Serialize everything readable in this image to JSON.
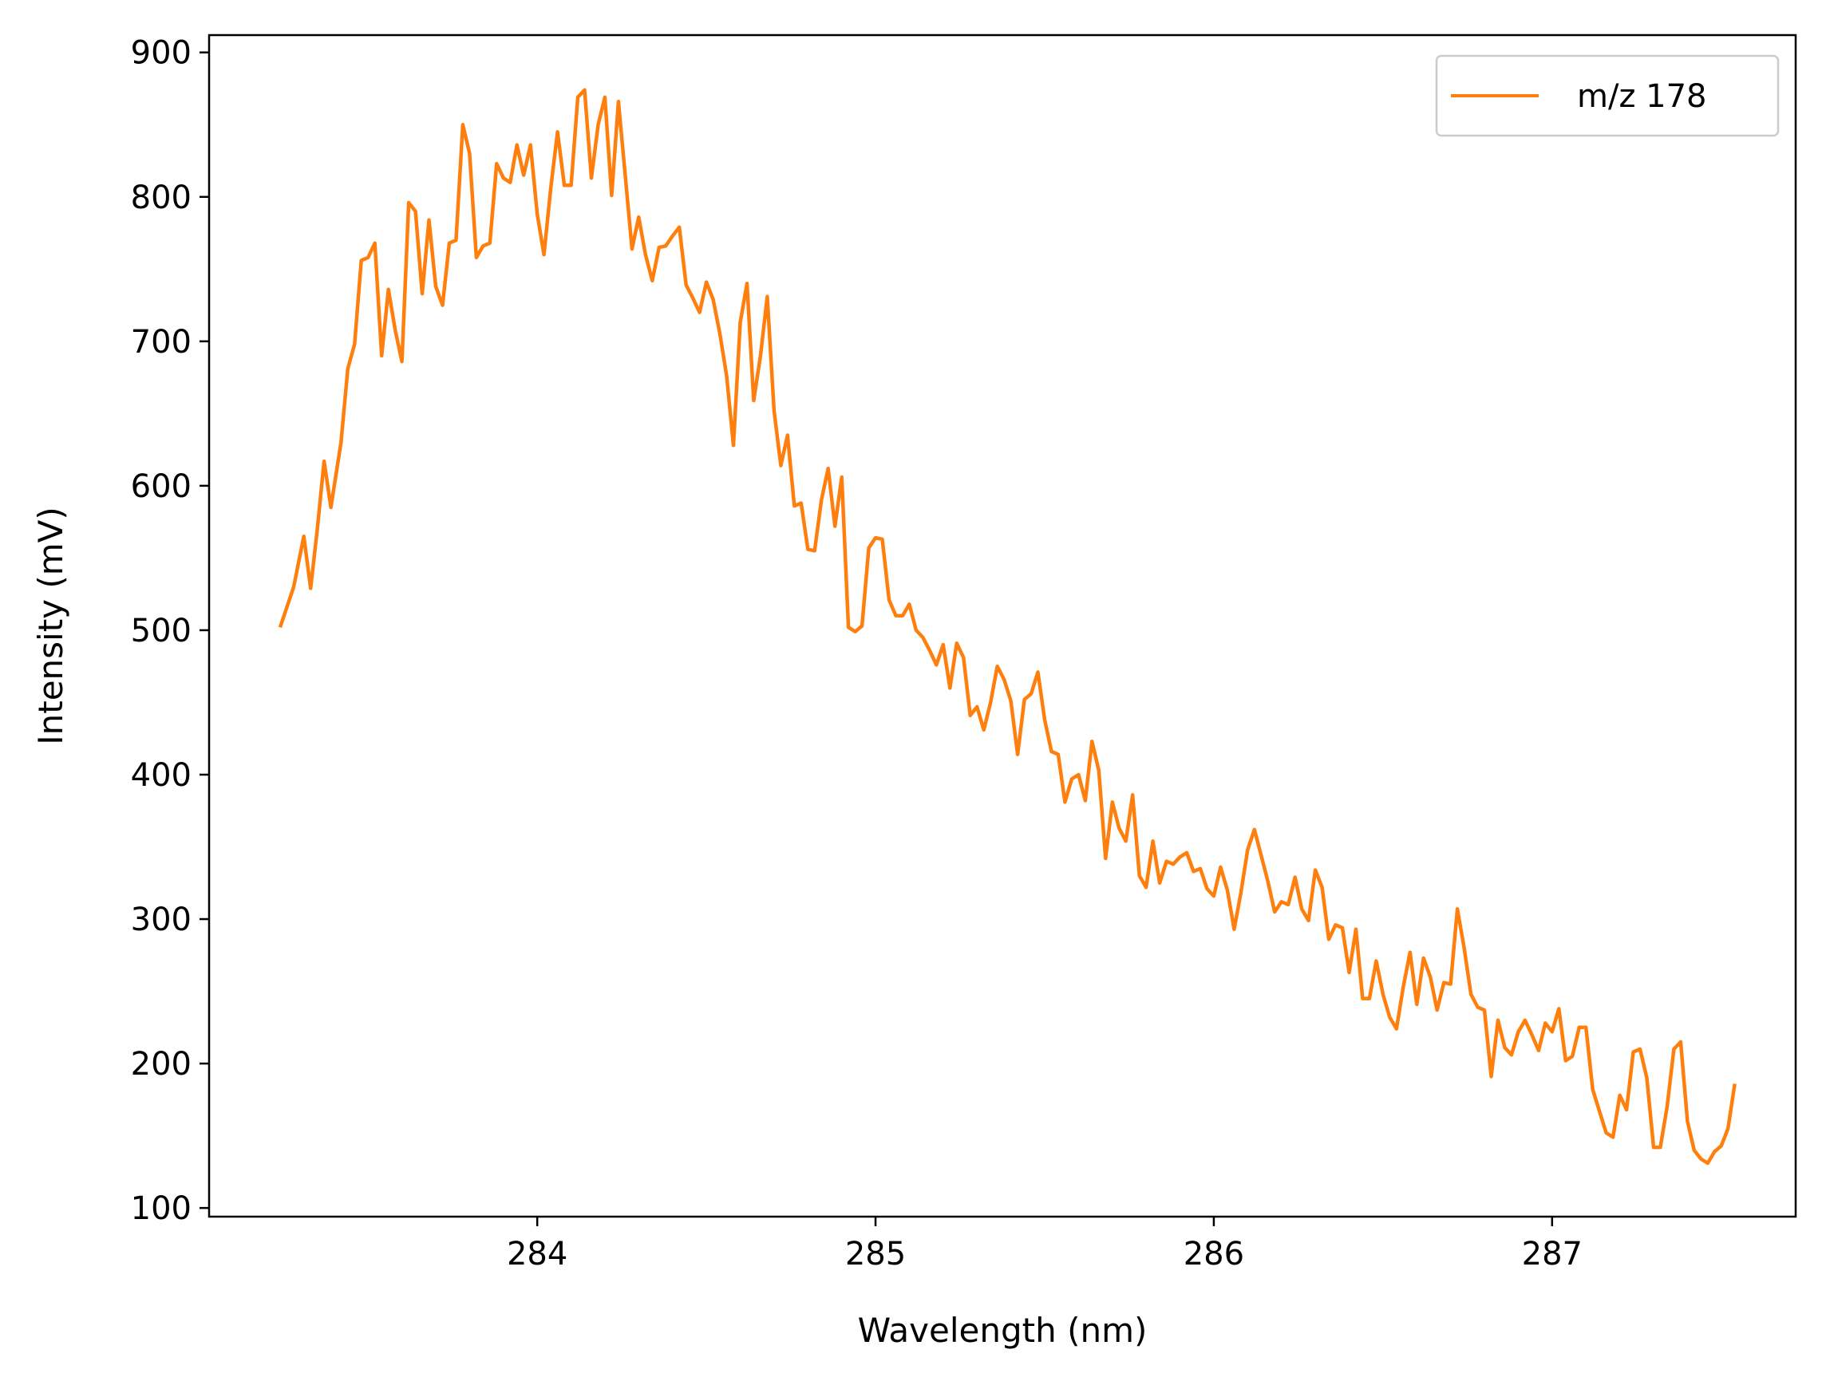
{
  "chart_data": {
    "type": "line",
    "title": "",
    "xlabel": "Wavelength (nm)",
    "ylabel": "Intensity (mV)",
    "xlim": [
      283.03,
      287.72
    ],
    "ylim": [
      94,
      912
    ],
    "xticks": [
      284,
      285,
      286,
      287
    ],
    "yticks": [
      100,
      200,
      300,
      400,
      500,
      600,
      700,
      800,
      900
    ],
    "grid": false,
    "legend_position": "top-right",
    "series": [
      {
        "name": "m/z 178",
        "color": "#ff7f0e",
        "points": [
          [
            283.24,
            502
          ],
          [
            283.28,
            530
          ],
          [
            283.31,
            565
          ],
          [
            283.33,
            529
          ],
          [
            283.35,
            570
          ],
          [
            283.37,
            617
          ],
          [
            283.39,
            585
          ],
          [
            283.42,
            630
          ],
          [
            283.44,
            681
          ],
          [
            283.46,
            698
          ],
          [
            283.48,
            756
          ],
          [
            283.5,
            758
          ],
          [
            283.52,
            768
          ],
          [
            283.54,
            690
          ],
          [
            283.56,
            736
          ],
          [
            283.58,
            708
          ],
          [
            283.6,
            686
          ],
          [
            283.62,
            796
          ],
          [
            283.64,
            790
          ],
          [
            283.66,
            733
          ],
          [
            283.68,
            784
          ],
          [
            283.7,
            738
          ],
          [
            283.72,
            725
          ],
          [
            283.74,
            768
          ],
          [
            283.76,
            770
          ],
          [
            283.78,
            850
          ],
          [
            283.8,
            830
          ],
          [
            283.82,
            758
          ],
          [
            283.84,
            766
          ],
          [
            283.86,
            768
          ],
          [
            283.88,
            823
          ],
          [
            283.9,
            813
          ],
          [
            283.92,
            810
          ],
          [
            283.94,
            836
          ],
          [
            283.96,
            815
          ],
          [
            283.98,
            836
          ],
          [
            284.0,
            788
          ],
          [
            284.02,
            760
          ],
          [
            284.04,
            806
          ],
          [
            284.06,
            845
          ],
          [
            284.08,
            808
          ],
          [
            284.1,
            808
          ],
          [
            284.12,
            869
          ],
          [
            284.14,
            874
          ],
          [
            284.16,
            813
          ],
          [
            284.18,
            850
          ],
          [
            284.2,
            869
          ],
          [
            284.22,
            801
          ],
          [
            284.24,
            866
          ],
          [
            284.26,
            815
          ],
          [
            284.28,
            764
          ],
          [
            284.3,
            786
          ],
          [
            284.32,
            760
          ],
          [
            284.34,
            742
          ],
          [
            284.36,
            765
          ],
          [
            284.38,
            766
          ],
          [
            284.4,
            773
          ],
          [
            284.42,
            779
          ],
          [
            284.44,
            739
          ],
          [
            284.46,
            730
          ],
          [
            284.48,
            720
          ],
          [
            284.5,
            741
          ],
          [
            284.52,
            729
          ],
          [
            284.54,
            705
          ],
          [
            284.56,
            676
          ],
          [
            284.58,
            628
          ],
          [
            284.6,
            713
          ],
          [
            284.62,
            740
          ],
          [
            284.64,
            659
          ],
          [
            284.66,
            690
          ],
          [
            284.68,
            731
          ],
          [
            284.7,
            652
          ],
          [
            284.72,
            614
          ],
          [
            284.74,
            635
          ],
          [
            284.76,
            586
          ],
          [
            284.78,
            588
          ],
          [
            284.8,
            556
          ],
          [
            284.82,
            555
          ],
          [
            284.84,
            590
          ],
          [
            284.86,
            612
          ],
          [
            284.88,
            572
          ],
          [
            284.9,
            606
          ],
          [
            284.92,
            502
          ],
          [
            284.94,
            499
          ],
          [
            284.96,
            503
          ],
          [
            284.98,
            557
          ],
          [
            285.0,
            564
          ],
          [
            285.02,
            563
          ],
          [
            285.04,
            521
          ],
          [
            285.06,
            510
          ],
          [
            285.08,
            510
          ],
          [
            285.1,
            518
          ],
          [
            285.12,
            500
          ],
          [
            285.14,
            495
          ],
          [
            285.16,
            486
          ],
          [
            285.18,
            476
          ],
          [
            285.2,
            490
          ],
          [
            285.22,
            460
          ],
          [
            285.24,
            491
          ],
          [
            285.26,
            481
          ],
          [
            285.28,
            441
          ],
          [
            285.3,
            447
          ],
          [
            285.32,
            431
          ],
          [
            285.34,
            450
          ],
          [
            285.36,
            475
          ],
          [
            285.38,
            466
          ],
          [
            285.4,
            451
          ],
          [
            285.42,
            414
          ],
          [
            285.44,
            452
          ],
          [
            285.46,
            456
          ],
          [
            285.48,
            471
          ],
          [
            285.5,
            438
          ],
          [
            285.52,
            416
          ],
          [
            285.54,
            414
          ],
          [
            285.56,
            381
          ],
          [
            285.58,
            397
          ],
          [
            285.6,
            400
          ],
          [
            285.62,
            382
          ],
          [
            285.64,
            423
          ],
          [
            285.66,
            403
          ],
          [
            285.68,
            342
          ],
          [
            285.7,
            381
          ],
          [
            285.72,
            363
          ],
          [
            285.74,
            354
          ],
          [
            285.76,
            386
          ],
          [
            285.78,
            330
          ],
          [
            285.8,
            322
          ],
          [
            285.82,
            354
          ],
          [
            285.84,
            325
          ],
          [
            285.86,
            340
          ],
          [
            285.88,
            338
          ],
          [
            285.9,
            343
          ],
          [
            285.92,
            346
          ],
          [
            285.94,
            333
          ],
          [
            285.96,
            335
          ],
          [
            285.98,
            321
          ],
          [
            286.0,
            316
          ],
          [
            286.02,
            336
          ],
          [
            286.04,
            320
          ],
          [
            286.06,
            293
          ],
          [
            286.08,
            318
          ],
          [
            286.1,
            348
          ],
          [
            286.12,
            362
          ],
          [
            286.14,
            344
          ],
          [
            286.16,
            326
          ],
          [
            286.18,
            305
          ],
          [
            286.2,
            312
          ],
          [
            286.22,
            310
          ],
          [
            286.24,
            329
          ],
          [
            286.26,
            307
          ],
          [
            286.28,
            299
          ],
          [
            286.3,
            334
          ],
          [
            286.32,
            322
          ],
          [
            286.34,
            286
          ],
          [
            286.36,
            296
          ],
          [
            286.38,
            294
          ],
          [
            286.4,
            263
          ],
          [
            286.42,
            293
          ],
          [
            286.44,
            245
          ],
          [
            286.46,
            245
          ],
          [
            286.48,
            271
          ],
          [
            286.5,
            248
          ],
          [
            286.52,
            232
          ],
          [
            286.54,
            224
          ],
          [
            286.56,
            253
          ],
          [
            286.58,
            277
          ],
          [
            286.6,
            241
          ],
          [
            286.62,
            273
          ],
          [
            286.64,
            260
          ],
          [
            286.66,
            237
          ],
          [
            286.68,
            256
          ],
          [
            286.7,
            255
          ],
          [
            286.72,
            307
          ],
          [
            286.74,
            280
          ],
          [
            286.76,
            248
          ],
          [
            286.78,
            239
          ],
          [
            286.8,
            237
          ],
          [
            286.82,
            191
          ],
          [
            286.84,
            230
          ],
          [
            286.86,
            211
          ],
          [
            286.88,
            206
          ],
          [
            286.9,
            222
          ],
          [
            286.92,
            230
          ],
          [
            286.94,
            220
          ],
          [
            286.96,
            209
          ],
          [
            286.98,
            228
          ],
          [
            287.0,
            222
          ],
          [
            287.02,
            238
          ],
          [
            287.04,
            202
          ],
          [
            287.06,
            205
          ],
          [
            287.08,
            225
          ],
          [
            287.1,
            225
          ],
          [
            287.12,
            182
          ],
          [
            287.14,
            167
          ],
          [
            287.16,
            152
          ],
          [
            287.18,
            149
          ],
          [
            287.2,
            178
          ],
          [
            287.22,
            168
          ],
          [
            287.24,
            208
          ],
          [
            287.26,
            210
          ],
          [
            287.28,
            190
          ],
          [
            287.3,
            142
          ],
          [
            287.32,
            142
          ],
          [
            287.34,
            170
          ],
          [
            287.36,
            210
          ],
          [
            287.38,
            215
          ],
          [
            287.4,
            160
          ],
          [
            287.42,
            140
          ],
          [
            287.44,
            134
          ],
          [
            287.46,
            131
          ],
          [
            287.48,
            139
          ],
          [
            287.5,
            143
          ],
          [
            287.52,
            155
          ],
          [
            287.54,
            186
          ]
        ]
      }
    ]
  }
}
